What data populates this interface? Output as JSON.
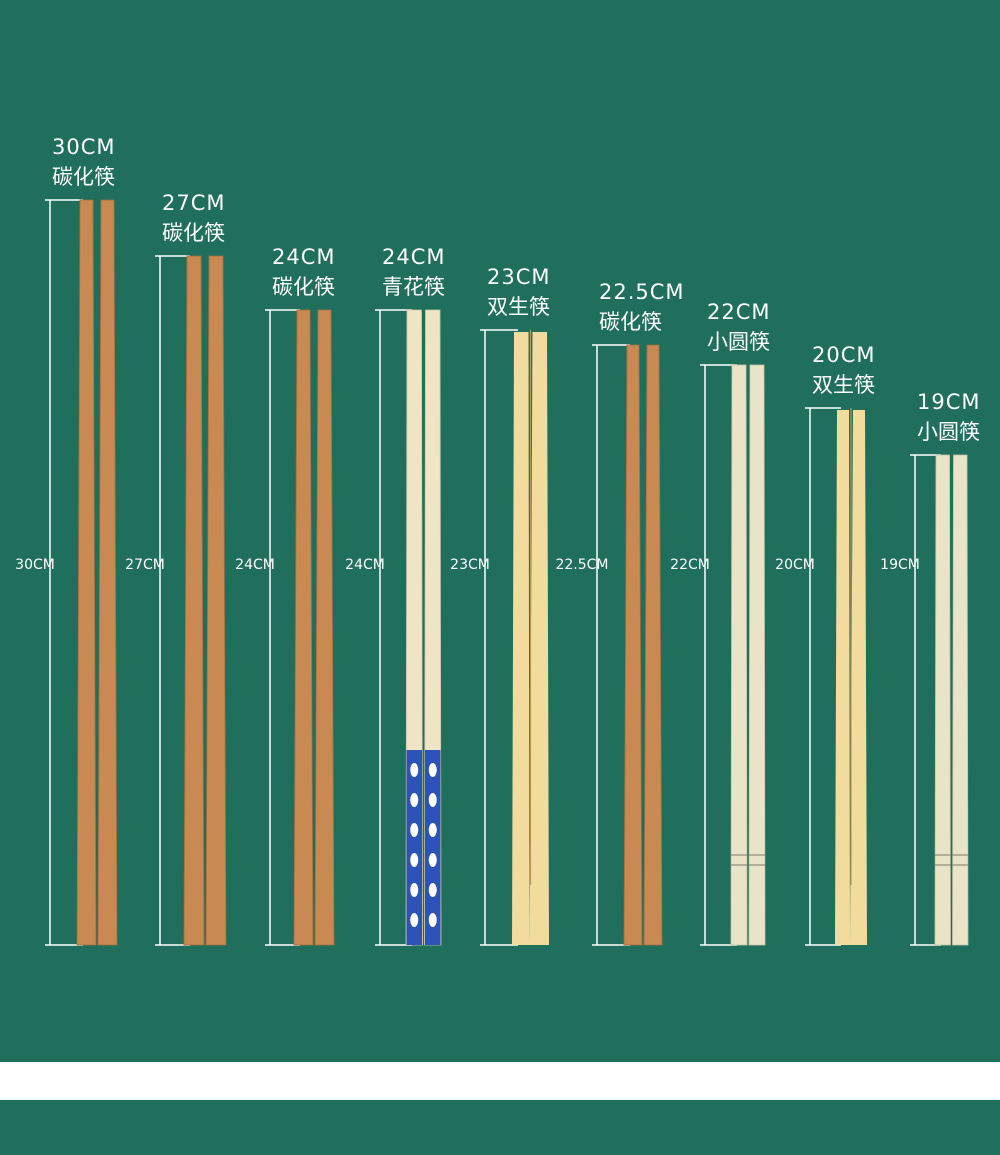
{
  "items": [
    {
      "size": "30CM",
      "name": "碳化筷",
      "side_label": "30CM"
    },
    {
      "size": "27CM",
      "name": "碳化筷",
      "side_label": "27CM"
    },
    {
      "size": "24CM",
      "name": "碳化筷",
      "side_label": "24CM"
    },
    {
      "size": "24CM",
      "name": "青花筷",
      "side_label": "24CM"
    },
    {
      "size": "23CM",
      "name": "双生筷",
      "side_label": "23CM"
    },
    {
      "size": "22.5CM",
      "name": "碳化筷",
      "side_label": "22.5CM"
    },
    {
      "size": "22CM",
      "name": "小圆筷",
      "side_label": "22CM"
    },
    {
      "size": "20CM",
      "name": "双生筷",
      "side_label": "20CM"
    },
    {
      "size": "19CM",
      "name": "小圆筷",
      "side_label": "19CM"
    }
  ]
}
